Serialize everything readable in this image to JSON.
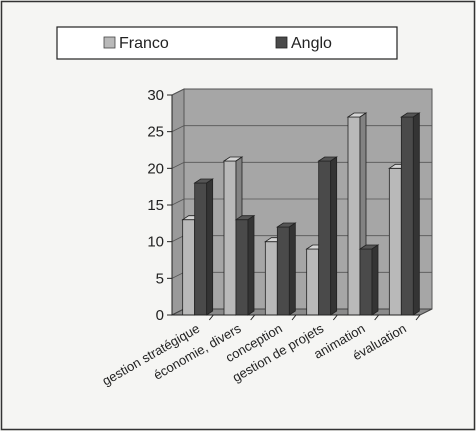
{
  "chart_data": {
    "type": "bar",
    "categories": [
      "gestion stratégique",
      "économie, divers",
      "conception",
      "gestion de projets",
      "animation",
      "évaluation"
    ],
    "series": [
      {
        "name": "Franco",
        "values": [
          13,
          21,
          10,
          9,
          27,
          20
        ],
        "color": "#b9b9b9"
      },
      {
        "name": "Anglo",
        "values": [
          18,
          13,
          12,
          21,
          9,
          27
        ],
        "color": "#4a4a4a"
      }
    ],
    "yticks": [
      0,
      5,
      10,
      15,
      20,
      25,
      30
    ],
    "ylim": [
      0,
      30
    ],
    "grid": true,
    "legend_position": "top",
    "plot_wall_color": "#a6a6a6",
    "floor_color": "#8a8a8a",
    "title": "",
    "xlabel": "",
    "ylabel": ""
  }
}
